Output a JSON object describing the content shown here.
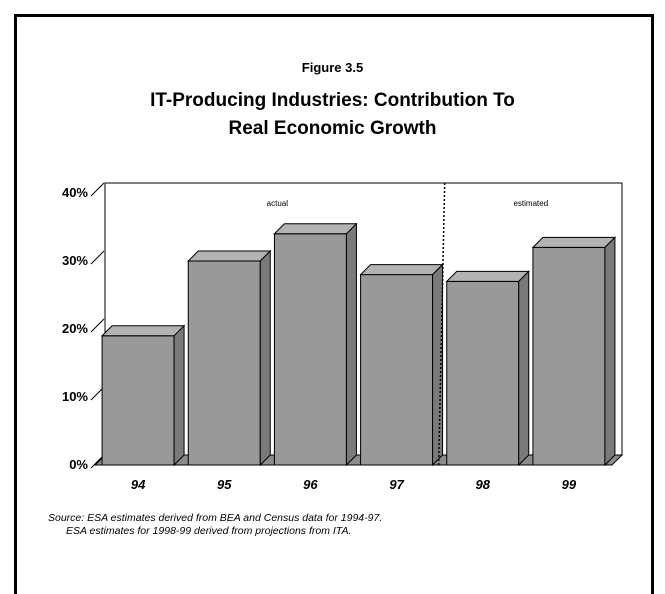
{
  "figure_label": "Figure 3.5",
  "title_line1": "IT-Producing Industries: Contribution To",
  "title_line2": "Real Economic Growth",
  "source_line1": "Source: ESA estimates derived from BEA and Census data for 1994-97.",
  "source_line2": "ESA estimates for 1998-99 derived from projections from ITA.",
  "chart_data": {
    "type": "bar",
    "title": "IT-Producing Industries: Contribution To Real Economic Growth",
    "xlabel": "",
    "ylabel": "",
    "categories": [
      "94",
      "95",
      "96",
      "97",
      "98",
      "99"
    ],
    "values": [
      19,
      30,
      34,
      28,
      27,
      32
    ],
    "y_ticks": [
      "0%",
      "10%",
      "20%",
      "30%",
      "40%"
    ],
    "ylim": [
      0,
      40
    ],
    "grid": false,
    "three_d": true,
    "divider_after_category": "97",
    "region_labels": [
      "actual",
      "estimated"
    ],
    "colors": {
      "bar_front": "#999999",
      "bar_top": "#b3b3b3",
      "bar_side": "#7a7a7a",
      "floor": "#8c8c8c",
      "outline": "#000000"
    }
  }
}
